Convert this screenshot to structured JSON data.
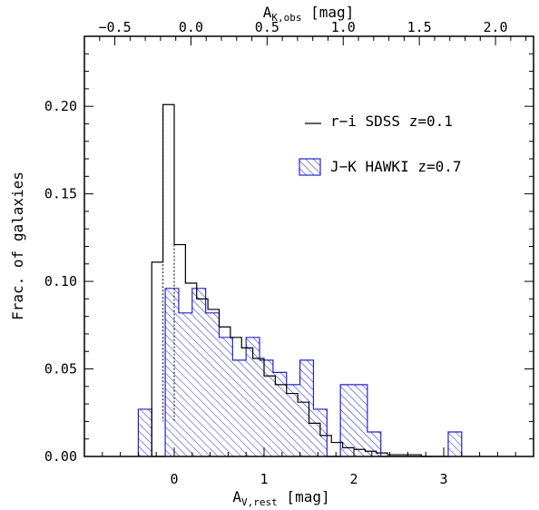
{
  "chart_data": {
    "type": "histogram",
    "bottom_axis": {
      "label": "A",
      "label_sub": "V,rest",
      "label_unit": " [mag]",
      "xlim": [
        -1.0,
        4.0
      ],
      "ticks": [
        0,
        1,
        2,
        3
      ],
      "tick_labels": [
        "0",
        "1",
        "2",
        "3"
      ]
    },
    "top_axis": {
      "label": "A",
      "label_sub": "K,obs",
      "label_unit": " [mag]",
      "xlim": [
        -0.7,
        2.25
      ],
      "ticks": [
        -0.5,
        0.0,
        0.5,
        1.0,
        1.5,
        2.0
      ],
      "tick_labels": [
        "−0.5",
        "0.0",
        "0.5",
        "1.0",
        "1.5",
        "2.0"
      ]
    },
    "y_axis": {
      "label": "Frac. of galaxies",
      "ylim": [
        0,
        0.24
      ],
      "ticks": [
        0.0,
        0.05,
        0.1,
        0.15,
        0.2
      ],
      "tick_labels": [
        "0.00",
        "0.05",
        "0.10",
        "0.15",
        "0.20"
      ]
    },
    "series": [
      {
        "name": "r−i SDSS z=0.1",
        "style": "line",
        "color": "#000000",
        "bin_edges": [
          -0.25,
          -0.125,
          0.0,
          0.125,
          0.25,
          0.375,
          0.5,
          0.625,
          0.75,
          0.875,
          1.0,
          1.125,
          1.25,
          1.375,
          1.5,
          1.625,
          1.75,
          1.875,
          2.0,
          2.125,
          2.25,
          2.375,
          2.5,
          2.625,
          2.75,
          2.875
        ],
        "values": [
          0.111,
          0.201,
          0.121,
          0.099,
          0.09,
          0.084,
          0.074,
          0.068,
          0.062,
          0.056,
          0.046,
          0.041,
          0.036,
          0.031,
          0.019,
          0.012,
          0.008,
          0.005,
          0.004,
          0.003,
          0.002,
          0.001,
          0.001,
          0.001,
          0.0
        ]
      },
      {
        "name": "J−K HAWKI z=0.7",
        "style": "hatched",
        "color": "#2222cc",
        "bin_edges": [
          -0.4,
          -0.25,
          -0.1,
          0.05,
          0.2,
          0.35,
          0.5,
          0.65,
          0.8,
          0.95,
          1.1,
          1.25,
          1.4,
          1.55,
          1.7,
          1.85,
          2.0,
          2.15,
          2.3,
          2.45,
          2.6,
          2.75,
          2.9,
          3.05,
          3.2
        ],
        "values": [
          0.027,
          0.0,
          0.096,
          0.082,
          0.096,
          0.082,
          0.068,
          0.055,
          0.068,
          0.055,
          0.048,
          0.041,
          0.055,
          0.027,
          0.0,
          0.041,
          0.041,
          0.014,
          0.0,
          0.0,
          0.0,
          0.0,
          0.0,
          0.014
        ]
      }
    ],
    "legend": {
      "position": "top-right"
    },
    "grid": false
  }
}
